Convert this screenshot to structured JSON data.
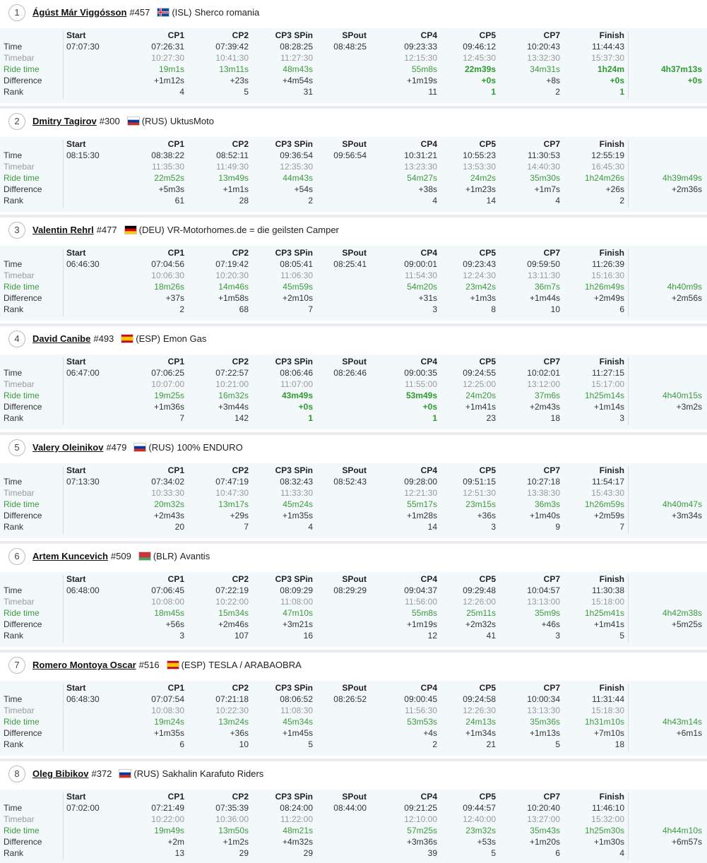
{
  "columns": [
    "Start",
    "CP1",
    "CP2",
    "CP3 SPin",
    "SPout",
    "CP4",
    "CP5",
    "CP7",
    "Finish"
  ],
  "row_labels": [
    "Time",
    "Timebar",
    "Ride time",
    "Difference",
    "Rank"
  ],
  "riders": [
    {
      "position": 1,
      "name": "Ágúst Már Viggósson",
      "bib": "#457",
      "nation": "(ISL)",
      "team": "Sherco romania",
      "flag": {
        "stripes": [
          "#02529c"
        ],
        "cross": "#dc1e35"
      },
      "time": [
        "07:07:30",
        "07:26:31",
        "07:39:42",
        "08:28:25",
        "08:48:25",
        "09:23:33",
        "09:46:12",
        "10:20:43",
        "11:44:43"
      ],
      "timebar": [
        null,
        "10:27:30",
        "10:41:30",
        "11:27:30",
        null,
        "12:15:30",
        "12:45:30",
        "13:32:30",
        "15:37:30"
      ],
      "ride_time": [
        null,
        "19m1s",
        "13m11s",
        "48m43s",
        null,
        "55m8s",
        "22m39s",
        "34m31s",
        "1h24m",
        "4h37m13s"
      ],
      "difference": [
        null,
        "+1m12s",
        "+23s",
        "+4m54s",
        null,
        "+1m19s",
        "+0s",
        "+8s",
        "+0s",
        "+0s"
      ],
      "rank": [
        null,
        4,
        5,
        31,
        null,
        11,
        1,
        2,
        1
      ]
    },
    {
      "position": 2,
      "name": "Dmitry Tagirov",
      "bib": "#300",
      "nation": "(RUS)",
      "team": "UktusMoto",
      "flag": {
        "stripes": [
          "#ffffff",
          "#0039a6",
          "#d52b1e"
        ]
      },
      "time": [
        "08:15:30",
        "08:38:22",
        "08:52:11",
        "09:36:54",
        "09:56:54",
        "10:31:21",
        "10:55:23",
        "11:30:53",
        "12:55:19"
      ],
      "timebar": [
        null,
        "11:35:30",
        "11:49:30",
        "12:35:30",
        null,
        "13:23:30",
        "13:53:30",
        "14:40:30",
        "16:45:30"
      ],
      "ride_time": [
        null,
        "22m52s",
        "13m49s",
        "44m43s",
        null,
        "54m27s",
        "24m2s",
        "35m30s",
        "1h24m26s",
        "4h39m49s"
      ],
      "difference": [
        null,
        "+5m3s",
        "+1m1s",
        "+54s",
        null,
        "+38s",
        "+1m23s",
        "+1m7s",
        "+26s",
        "+2m36s"
      ],
      "rank": [
        null,
        61,
        28,
        2,
        null,
        4,
        14,
        4,
        2
      ]
    },
    {
      "position": 3,
      "name": "Valentin Rehrl",
      "bib": "#477",
      "nation": "(DEU)",
      "team": "VR-Motorhomes.de = die geilsten Camper",
      "flag": {
        "stripes": [
          "#000000",
          "#dd0000",
          "#ffce00"
        ]
      },
      "time": [
        "06:46:30",
        "07:04:56",
        "07:19:42",
        "08:05:41",
        "08:25:41",
        "09:00:01",
        "09:23:43",
        "09:59:50",
        "11:26:39"
      ],
      "timebar": [
        null,
        "10:06:30",
        "10:20:30",
        "11:06:30",
        null,
        "11:54:30",
        "12:24:30",
        "13:11:30",
        "15:16:30"
      ],
      "ride_time": [
        null,
        "18m26s",
        "14m46s",
        "45m59s",
        null,
        "54m20s",
        "23m42s",
        "36m7s",
        "1h26m49s",
        "4h40m9s"
      ],
      "difference": [
        null,
        "+37s",
        "+1m58s",
        "+2m10s",
        null,
        "+31s",
        "+1m3s",
        "+1m44s",
        "+2m49s",
        "+2m56s"
      ],
      "rank": [
        null,
        2,
        68,
        7,
        null,
        3,
        8,
        10,
        6
      ]
    },
    {
      "position": 4,
      "name": "David Canibe",
      "bib": "#493",
      "nation": "(ESP)",
      "team": "Emon Gas",
      "flag": {
        "stripes": [
          "#c60b1e",
          "#ffc400",
          "#ffc400",
          "#c60b1e"
        ]
      },
      "time": [
        "06:47:00",
        "07:06:25",
        "07:22:57",
        "08:06:46",
        "08:26:46",
        "09:00:35",
        "09:24:55",
        "10:02:01",
        "11:27:15"
      ],
      "timebar": [
        null,
        "10:07:00",
        "10:21:00",
        "11:07:00",
        null,
        "11:55:00",
        "12:25:00",
        "13:12:00",
        "15:17:00"
      ],
      "ride_time": [
        null,
        "19m25s",
        "16m32s",
        "43m49s",
        null,
        "53m49s",
        "24m20s",
        "37m6s",
        "1h25m14s",
        "4h40m15s"
      ],
      "difference": [
        null,
        "+1m36s",
        "+3m44s",
        "+0s",
        null,
        "+0s",
        "+1m41s",
        "+2m43s",
        "+1m14s",
        "+3m2s"
      ],
      "rank": [
        null,
        7,
        142,
        1,
        null,
        1,
        23,
        18,
        3
      ]
    },
    {
      "position": 5,
      "name": "Valery Oleinikov",
      "bib": "#479",
      "nation": "(RUS)",
      "team": "100% ENDURO",
      "flag": {
        "stripes": [
          "#ffffff",
          "#0039a6",
          "#d52b1e"
        ]
      },
      "time": [
        "07:13:30",
        "07:34:02",
        "07:47:19",
        "08:32:43",
        "08:52:43",
        "09:28:00",
        "09:51:15",
        "10:27:18",
        "11:54:17"
      ],
      "timebar": [
        null,
        "10:33:30",
        "10:47:30",
        "11:33:30",
        null,
        "12:21:30",
        "12:51:30",
        "13:38:30",
        "15:43:30"
      ],
      "ride_time": [
        null,
        "20m32s",
        "13m17s",
        "45m24s",
        null,
        "55m17s",
        "23m15s",
        "36m3s",
        "1h26m59s",
        "4h40m47s"
      ],
      "difference": [
        null,
        "+2m43s",
        "+29s",
        "+1m35s",
        null,
        "+1m28s",
        "+36s",
        "+1m40s",
        "+2m59s",
        "+3m34s"
      ],
      "rank": [
        null,
        20,
        7,
        4,
        null,
        14,
        3,
        9,
        7
      ]
    },
    {
      "position": 6,
      "name": "Artem Kuncevich",
      "bib": "#509",
      "nation": "(BLR)",
      "team": "Avantis",
      "flag": {
        "stripes": [
          "#c8313e",
          "#c8313e",
          "#4aa657"
        ]
      },
      "time": [
        "06:48:00",
        "07:06:45",
        "07:22:19",
        "08:09:29",
        "08:29:29",
        "09:04:37",
        "09:29:48",
        "10:04:57",
        "11:30:38"
      ],
      "timebar": [
        null,
        "10:08:00",
        "10:22:00",
        "11:08:00",
        null,
        "11:56:00",
        "12:26:00",
        "13:13:00",
        "15:18:00"
      ],
      "ride_time": [
        null,
        "18m45s",
        "15m34s",
        "47m10s",
        null,
        "55m8s",
        "25m11s",
        "35m9s",
        "1h25m41s",
        "4h42m38s"
      ],
      "difference": [
        null,
        "+56s",
        "+2m46s",
        "+3m21s",
        null,
        "+1m19s",
        "+2m32s",
        "+46s",
        "+1m41s",
        "+5m25s"
      ],
      "rank": [
        null,
        3,
        107,
        16,
        null,
        12,
        41,
        3,
        5
      ]
    },
    {
      "position": 7,
      "name": "Romero Montoya Oscar",
      "bib": "#516",
      "nation": "(ESP)",
      "team": "TESLA / ARABAOBRA",
      "flag": {
        "stripes": [
          "#c60b1e",
          "#ffc400",
          "#ffc400",
          "#c60b1e"
        ]
      },
      "time": [
        "06:48:30",
        "07:07:54",
        "07:21:18",
        "08:06:52",
        "08:26:52",
        "09:00:45",
        "09:24:58",
        "10:00:34",
        "11:31:44"
      ],
      "timebar": [
        null,
        "10:08:30",
        "10:22:30",
        "11:08:30",
        null,
        "11:56:30",
        "12:26:30",
        "13:13:30",
        "15:18:30"
      ],
      "ride_time": [
        null,
        "19m24s",
        "13m24s",
        "45m34s",
        null,
        "53m53s",
        "24m13s",
        "35m36s",
        "1h31m10s",
        "4h43m14s"
      ],
      "difference": [
        null,
        "+1m35s",
        "+36s",
        "+1m45s",
        null,
        "+4s",
        "+1m34s",
        "+1m13s",
        "+7m10s",
        "+6m1s"
      ],
      "rank": [
        null,
        6,
        10,
        5,
        null,
        2,
        21,
        5,
        18
      ]
    },
    {
      "position": 8,
      "name": "Oleg Bibikov",
      "bib": "#372",
      "nation": "(RUS)",
      "team": "Sakhalin Karafuto Riders",
      "flag": {
        "stripes": [
          "#ffffff",
          "#0039a6",
          "#d52b1e"
        ]
      },
      "time": [
        "07:02:00",
        "07:21:49",
        "07:35:39",
        "08:24:00",
        "08:44:00",
        "09:21:25",
        "09:44:57",
        "10:20:40",
        "11:46:10"
      ],
      "timebar": [
        null,
        "10:22:00",
        "10:36:00",
        "11:22:00",
        null,
        "12:10:00",
        "12:40:00",
        "13:27:00",
        "15:32:00"
      ],
      "ride_time": [
        null,
        "19m49s",
        "13m50s",
        "48m21s",
        null,
        "57m25s",
        "23m32s",
        "35m43s",
        "1h25m30s",
        "4h44m10s"
      ],
      "difference": [
        null,
        "+2m",
        "+1m2s",
        "+4m32s",
        null,
        "+3m36s",
        "+53s",
        "+1m20s",
        "+1m30s",
        "+6m57s"
      ],
      "rank": [
        null,
        13,
        29,
        29,
        null,
        39,
        5,
        6,
        4
      ]
    }
  ]
}
